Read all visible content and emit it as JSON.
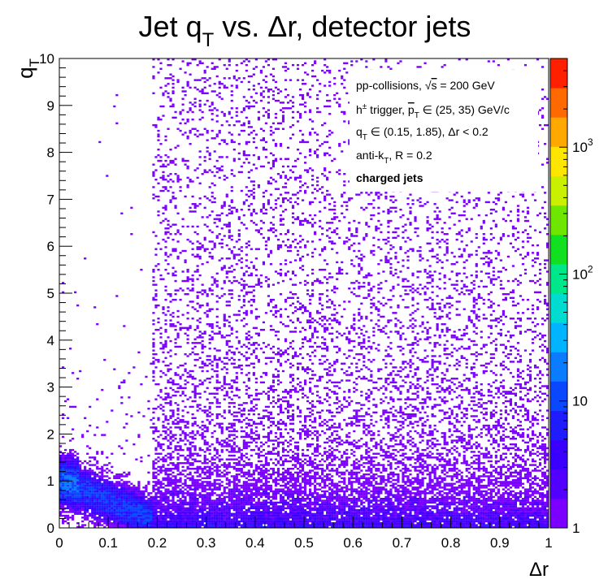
{
  "chart_data": {
    "type": "heatmap",
    "title": "Jet q",
    "title_sub": "T",
    "title_rest": " vs. Δr, detector jets",
    "xlabel": "Δr",
    "ylabel_main": "q",
    "ylabel_sub": "T",
    "xlim": [
      0,
      1
    ],
    "ylim": [
      0,
      10
    ],
    "x_ticks": [
      "0",
      "0.1",
      "0.2",
      "0.3",
      "0.4",
      "0.5",
      "0.6",
      "0.7",
      "0.8",
      "0.9",
      "1"
    ],
    "y_ticks": [
      "0",
      "1",
      "2",
      "3",
      "4",
      "5",
      "6",
      "7",
      "8",
      "9",
      "10"
    ],
    "z_scale": "log",
    "zlim": [
      1,
      5000
    ],
    "z_ticks": [
      {
        "value": 1,
        "label": "1"
      },
      {
        "value": 10,
        "label": "10"
      },
      {
        "value": 100,
        "base": "10",
        "exp": "2"
      },
      {
        "value": 1000,
        "base": "10",
        "exp": "3"
      }
    ],
    "grid": false,
    "colormap": [
      "#7b00ff",
      "#5200ff",
      "#3a00ff",
      "#1f1cff",
      "#0a48ff",
      "#0a7cff",
      "#00b4ff",
      "#00dcd0",
      "#00e68a",
      "#10e020",
      "#6ee600",
      "#c8f000",
      "#ffe600",
      "#ffa800",
      "#ff6a00",
      "#ff2000"
    ],
    "annotations": [
      {
        "pre": "pp-collisions, √",
        "over": "s",
        "post": " = 200 GeV"
      },
      {
        "pre": "h",
        "sup": "±",
        "mid": " trigger, ",
        "hat": "p",
        "sub": "T",
        "post": " ∈ (25, 35) GeV/c"
      },
      {
        "pre": "q",
        "sub": "T",
        "post": " ∈ (0.15, 1.85), Δr < 0.2"
      },
      {
        "pre": "anti-k",
        "sub": "T",
        "post": ", R = 0.2"
      },
      {
        "bold": "charged jets"
      }
    ]
  }
}
